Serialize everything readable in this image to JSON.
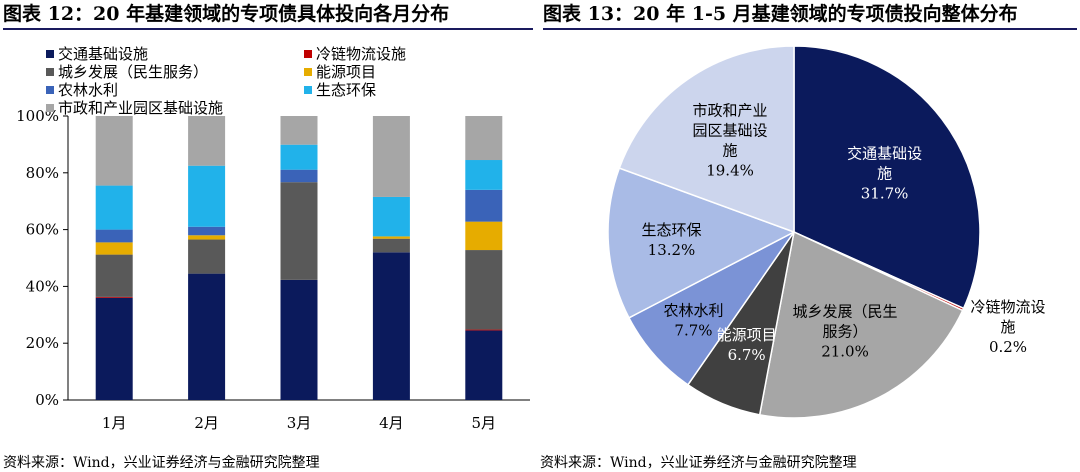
{
  "left_panel": {
    "title": "图表 12：20 年基建领域的专项债具体投向各月分布",
    "source": "资料来源：Wind，兴业证券经济与金融研究院整理"
  },
  "right_panel": {
    "title": "图表 13：20 年 1-5 月基建领域的专项债投向整体分布",
    "source": "资料来源：Wind，兴业证券经济与金融研究院整理"
  },
  "colors": {
    "交通基础设施": "#0b1a5c",
    "冷链物流设施": "#c00000",
    "城乡发展（民生服务）": "#595959",
    "能源项目": "#e6ac00",
    "农林水利": "#3a63b8",
    "生态环保": "#21b2ea",
    "市政和产业园区基础设施": "#a6a6a6"
  },
  "pie_colors": {
    "交通基础设施": "#0b1a5c",
    "冷链物流设施": "#c00000",
    "城乡发展（民生服务）": "#a6a6a6",
    "能源项目": "#404040",
    "农林水利": "#7b93d6",
    "生态环保": "#a9bbe6",
    "市政和产业园区基础设施": "#ccd5ed"
  },
  "chart_data": [
    {
      "type": "bar",
      "stacked": true,
      "categories": [
        "1月",
        "2月",
        "3月",
        "4月",
        "5月"
      ],
      "ylim": [
        0,
        100
      ],
      "yticks": [
        "0%",
        "20%",
        "40%",
        "60%",
        "80%",
        "100%"
      ],
      "legend_position": "top",
      "series": [
        {
          "name": "交通基础设施",
          "values": [
            36.0,
            44.5,
            42.3,
            52.0,
            24.5
          ]
        },
        {
          "name": "冷链物流设施",
          "values": [
            0.3,
            0.0,
            0.0,
            0.0,
            0.3
          ]
        },
        {
          "name": "城乡发展（民生服务）",
          "values": [
            14.9,
            12.0,
            34.4,
            4.8,
            28.0
          ]
        },
        {
          "name": "能源项目",
          "values": [
            4.3,
            1.5,
            0.0,
            0.8,
            10.0
          ]
        },
        {
          "name": "农林水利",
          "values": [
            4.5,
            3.0,
            4.4,
            0.0,
            11.2
          ]
        },
        {
          "name": "生态环保",
          "values": [
            15.5,
            21.5,
            8.8,
            13.9,
            10.5
          ]
        },
        {
          "name": "市政和产业园区基础设施",
          "values": [
            24.5,
            17.5,
            10.1,
            28.5,
            15.5
          ]
        }
      ]
    },
    {
      "type": "pie",
      "slices": [
        {
          "name": "交通基础设施",
          "value": 31.7,
          "label": "交通基础设\n施\n31.7%"
        },
        {
          "name": "冷链物流设施",
          "value": 0.2,
          "label": "冷链物流设\n施\n0.2%"
        },
        {
          "name": "城乡发展（民生服务）",
          "value": 21.0,
          "label": "城乡发展（民生\n服务）\n21.0%"
        },
        {
          "name": "能源项目",
          "value": 6.7,
          "label": "能源项目\n6.7%"
        },
        {
          "name": "农林水利",
          "value": 7.7,
          "label": "农林水利\n7.7%"
        },
        {
          "name": "生态环保",
          "value": 13.2,
          "label": "生态环保\n13.2%"
        },
        {
          "name": "市政和产业园区基础设施",
          "value": 19.4,
          "label": "市政和产业\n园区基础设\n施\n19.4%"
        }
      ]
    }
  ]
}
